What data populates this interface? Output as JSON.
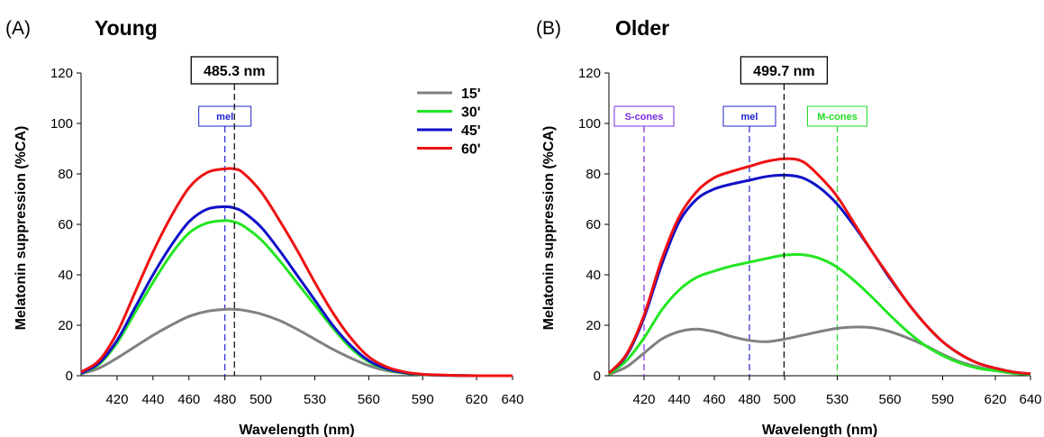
{
  "colors": {
    "15'": "#808080",
    "30'": "#22e622",
    "45'": "#1010c8",
    "60'": "#ee1111",
    "mel": "#2222cc",
    "S-cones": "#7a2be0",
    "M-cones": "#22dd22",
    "peak": "#000000"
  },
  "legend": [
    "15'",
    "30'",
    "45'",
    "60'"
  ],
  "chart_data": [
    {
      "type": "line",
      "panel_label": "(A)",
      "title": "Young",
      "xlabel": "Wavelength (nm)",
      "ylabel": "Melatonin suppression (%CA)",
      "xlim": [
        400,
        640
      ],
      "ylim": [
        0,
        120
      ],
      "x_ticks": [
        420,
        440,
        460,
        480,
        500,
        530,
        560,
        590,
        620,
        640
      ],
      "y_ticks": [
        0,
        20,
        40,
        60,
        80,
        100,
        120
      ],
      "x": [
        400,
        410,
        420,
        430,
        440,
        450,
        460,
        470,
        480,
        485,
        490,
        500,
        510,
        520,
        530,
        540,
        550,
        560,
        570,
        580,
        590,
        600,
        610,
        620,
        630,
        640
      ],
      "series": [
        {
          "name": "15'",
          "values": [
            0.7,
            3,
            7,
            11.5,
            16,
            20,
            23.5,
            25.5,
            26.3,
            26.3,
            26,
            24.5,
            22,
            18.5,
            14.5,
            10.5,
            7,
            4,
            2,
            1,
            0.4,
            0.2,
            0.1,
            0,
            0,
            0
          ]
        },
        {
          "name": "30'",
          "values": [
            1,
            4.5,
            13,
            25,
            37,
            48,
            56.5,
            60.5,
            61.5,
            61,
            59.5,
            54,
            46,
            37,
            28,
            19,
            11,
            5.5,
            2.5,
            1,
            0.4,
            0.2,
            0.1,
            0,
            0,
            0
          ]
        },
        {
          "name": "45'",
          "values": [
            1,
            5,
            14,
            27,
            40,
            51.5,
            61,
            66,
            67,
            66.5,
            65,
            59,
            50,
            40,
            30,
            20,
            12,
            6,
            2.8,
            1.2,
            0.5,
            0.2,
            0.1,
            0,
            0,
            0
          ]
        },
        {
          "name": "60'",
          "values": [
            1.5,
            6,
            17,
            33,
            49,
            63,
            74.5,
            80.5,
            82,
            82,
            80.5,
            73,
            62,
            50,
            37,
            25,
            15,
            7.5,
            3.5,
            1.5,
            0.6,
            0.3,
            0.1,
            0,
            0,
            0
          ]
        }
      ],
      "peak_label": "485.3 nm",
      "peak_x": 485.3,
      "markers": [
        {
          "label": "mel",
          "x": 480
        }
      ]
    },
    {
      "type": "line",
      "panel_label": "(B)",
      "title": "Older",
      "xlabel": "Wavelength (nm)",
      "ylabel": "Melatonin suppression (%CA)",
      "xlim": [
        400,
        640
      ],
      "ylim": [
        0,
        120
      ],
      "x_ticks": [
        420,
        440,
        460,
        480,
        500,
        530,
        560,
        590,
        620,
        640
      ],
      "y_ticks": [
        0,
        20,
        40,
        60,
        80,
        100,
        120
      ],
      "x": [
        400,
        410,
        420,
        430,
        440,
        450,
        460,
        470,
        480,
        490,
        500,
        510,
        520,
        530,
        540,
        550,
        560,
        570,
        580,
        590,
        600,
        610,
        620,
        630,
        640
      ],
      "series": [
        {
          "name": "15'",
          "values": [
            0.5,
            3.5,
            9,
            14.5,
            17.5,
            18.5,
            17.5,
            15.5,
            14,
            13.5,
            14.5,
            16,
            17.5,
            18.8,
            19.3,
            19,
            17.5,
            15,
            12,
            8.5,
            5.5,
            3.5,
            2,
            1,
            0.6
          ]
        },
        {
          "name": "30'",
          "values": [
            0.5,
            6,
            15,
            26,
            34,
            39,
            41.5,
            43.5,
            45,
            46.5,
            47.8,
            48,
            46.5,
            43,
            37.5,
            31,
            24,
            17.5,
            12,
            8,
            5,
            3,
            2,
            1,
            0.6
          ]
        },
        {
          "name": "45'",
          "values": [
            1,
            8,
            23,
            44,
            61,
            70,
            74,
            76,
            77.5,
            79,
            79.5,
            78.5,
            74.5,
            68,
            59,
            49,
            38.5,
            29,
            20.5,
            13.5,
            8.5,
            5,
            3,
            1.5,
            0.8
          ]
        },
        {
          "name": "60'",
          "values": [
            1,
            8.5,
            24,
            46,
            63,
            73,
            78.5,
            81,
            83,
            85,
            86,
            85,
            79,
            71,
            60,
            49,
            39,
            29,
            20.5,
            13.5,
            8.5,
            5,
            3,
            1.5,
            0.8
          ]
        }
      ],
      "peak_label": "499.7 nm",
      "peak_x": 499.7,
      "markers": [
        {
          "label": "S-cones",
          "x": 420
        },
        {
          "label": "mel",
          "x": 480
        },
        {
          "label": "M-cones",
          "x": 530
        }
      ]
    }
  ]
}
